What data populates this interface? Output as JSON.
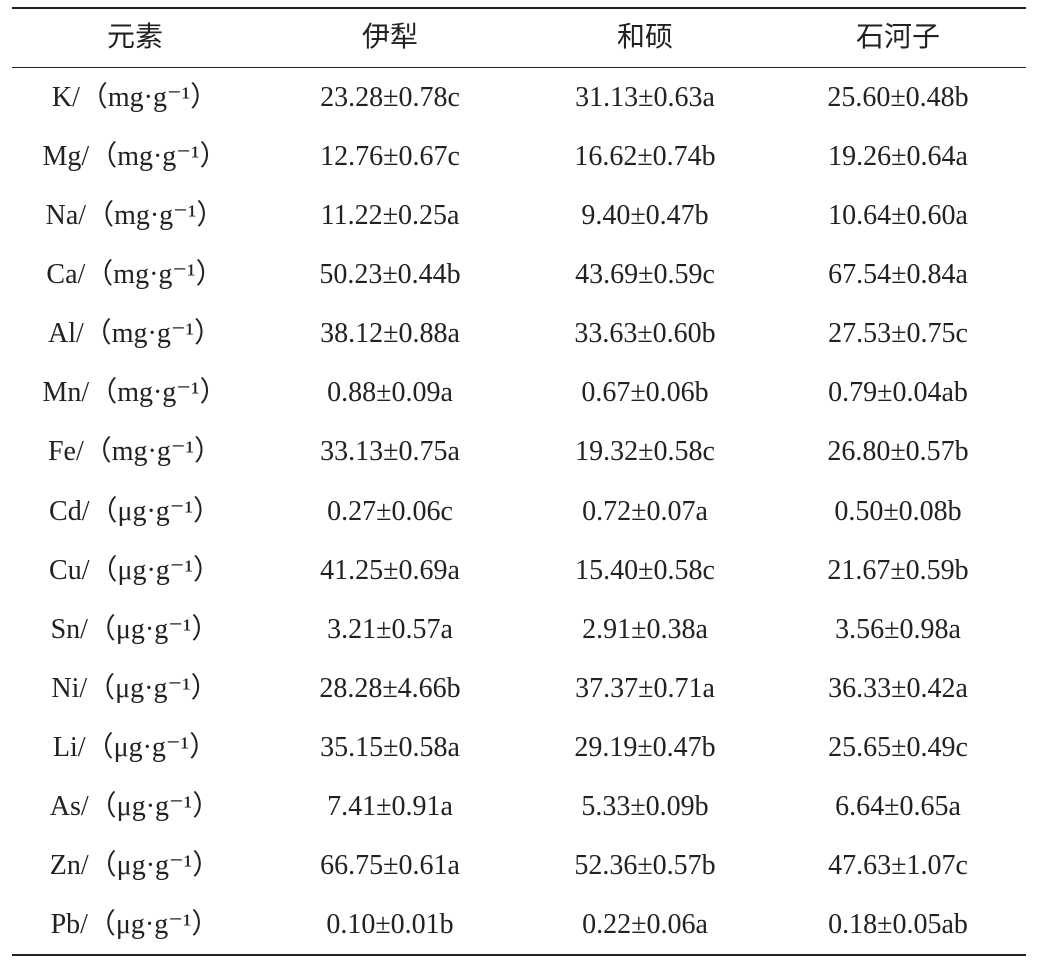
{
  "table": {
    "header": [
      "元素",
      "伊犁",
      "和硕",
      "石河子"
    ],
    "rows": [
      [
        "K/（mg·g⁻¹）",
        "23.28±0.78c",
        "31.13±0.63a",
        "25.60±0.48b"
      ],
      [
        "Mg/（mg·g⁻¹）",
        "12.76±0.67c",
        "16.62±0.74b",
        "19.26±0.64a"
      ],
      [
        "Na/（mg·g⁻¹）",
        "11.22±0.25a",
        "9.40±0.47b",
        "10.64±0.60a"
      ],
      [
        "Ca/（mg·g⁻¹）",
        "50.23±0.44b",
        "43.69±0.59c",
        "67.54±0.84a"
      ],
      [
        "Al/（mg·g⁻¹）",
        "38.12±0.88a",
        "33.63±0.60b",
        "27.53±0.75c"
      ],
      [
        "Mn/（mg·g⁻¹）",
        "0.88±0.09a",
        "0.67±0.06b",
        "0.79±0.04ab"
      ],
      [
        "Fe/（mg·g⁻¹）",
        "33.13±0.75a",
        "19.32±0.58c",
        "26.80±0.57b"
      ],
      [
        "Cd/（μg·g⁻¹）",
        "0.27±0.06c",
        "0.72±0.07a",
        "0.50±0.08b"
      ],
      [
        "Cu/（μg·g⁻¹）",
        "41.25±0.69a",
        "15.40±0.58c",
        "21.67±0.59b"
      ],
      [
        "Sn/（μg·g⁻¹）",
        "3.21±0.57a",
        "2.91±0.38a",
        "3.56±0.98a"
      ],
      [
        "Ni/（μg·g⁻¹）",
        "28.28±4.66b",
        "37.37±0.71a",
        "36.33±0.42a"
      ],
      [
        "Li/（μg·g⁻¹）",
        "35.15±0.58a",
        "29.19±0.47b",
        "25.65±0.49c"
      ],
      [
        "As/（μg·g⁻¹）",
        "7.41±0.91a",
        "5.33±0.09b",
        "6.64±0.65a"
      ],
      [
        "Zn/（μg·g⁻¹）",
        "66.75±0.61a",
        "52.36±0.57b",
        "47.63±1.07c"
      ],
      [
        "Pb/（μg·g⁻¹）",
        "0.10±0.01b",
        "0.22±0.06a",
        "0.18±0.05ab"
      ]
    ]
  }
}
